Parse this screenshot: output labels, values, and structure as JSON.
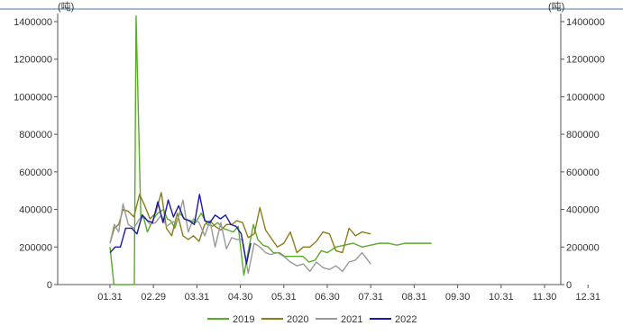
{
  "chart_data": {
    "type": "line",
    "unit_left": "(吨)",
    "unit_right": "(吨)",
    "ylim": [
      0,
      1400000
    ],
    "y_ticks": [
      0,
      200000,
      400000,
      600000,
      800000,
      1000000,
      1200000,
      1400000
    ],
    "y_tick_labels": [
      "0",
      "200000",
      "400000",
      "600000",
      "800000",
      "1000000",
      "1200000",
      "1400000"
    ],
    "x_ticks": [
      "01.31",
      "02.29",
      "03.31",
      "04.30",
      "05.31",
      "06.30",
      "07.31",
      "08.31",
      "09.30",
      "10.31",
      "11.30",
      "12.31"
    ],
    "series": [
      {
        "name": "2019",
        "color": "#5aab2a",
        "x": [
          0.0,
          0.09,
          0.17,
          0.26,
          0.3,
          0.39,
          0.46,
          0.56,
          0.6,
          0.71,
          0.76,
          0.86,
          1.0,
          1.1,
          1.23,
          1.32,
          1.4,
          1.49,
          1.6,
          1.72,
          1.85,
          1.97,
          2.1,
          2.24,
          2.36,
          2.48,
          2.59,
          2.71,
          2.84,
          2.95,
          3.08,
          3.2,
          3.3,
          3.4,
          3.52,
          3.64,
          3.76,
          3.9,
          4.02,
          4.14,
          4.28,
          4.44,
          4.58,
          4.72,
          4.86,
          5.0,
          5.2,
          5.4,
          5.6,
          5.8,
          6.0,
          6.2,
          6.4,
          6.6,
          6.8,
          7.0,
          7.18,
          7.4
        ],
        "values": [
          200000,
          0,
          0,
          0,
          0,
          0,
          0,
          0,
          1430000,
          350000,
          370000,
          280000,
          350000,
          380000,
          400000,
          350000,
          340000,
          300000,
          380000,
          350000,
          340000,
          330000,
          380000,
          320000,
          310000,
          330000,
          300000,
          290000,
          280000,
          310000,
          50000,
          200000,
          320000,
          240000,
          210000,
          200000,
          170000,
          170000,
          150000,
          150000,
          150000,
          150000,
          120000,
          130000,
          180000,
          170000,
          200000,
          210000,
          220000,
          200000,
          210000,
          220000,
          220000,
          210000,
          220000,
          220000,
          220000,
          220000
        ]
      },
      {
        "name": "2020",
        "color": "#8b7d1c",
        "x": [
          0.0,
          0.1,
          0.2,
          0.3,
          0.42,
          0.55,
          0.68,
          0.8,
          0.92,
          1.05,
          1.18,
          1.3,
          1.42,
          1.55,
          1.68,
          1.8,
          1.92,
          2.05,
          2.18,
          2.3,
          2.42,
          2.55,
          2.68,
          2.8,
          2.92,
          3.05,
          3.18,
          3.32,
          3.45,
          3.58,
          3.7,
          3.85,
          4.0,
          4.15,
          4.3,
          4.45,
          4.6,
          4.75,
          4.9,
          5.05,
          5.2,
          5.35,
          5.5,
          5.65,
          5.8,
          6.0
        ],
        "values": [
          220000,
          300000,
          320000,
          400000,
          390000,
          360000,
          480000,
          420000,
          350000,
          380000,
          490000,
          300000,
          260000,
          380000,
          260000,
          240000,
          260000,
          230000,
          320000,
          340000,
          310000,
          290000,
          320000,
          320000,
          340000,
          330000,
          250000,
          270000,
          410000,
          290000,
          250000,
          200000,
          220000,
          280000,
          170000,
          200000,
          200000,
          230000,
          280000,
          270000,
          180000,
          170000,
          300000,
          260000,
          280000,
          270000
        ]
      },
      {
        "name": "2021",
        "color": "#999999",
        "x": [
          0.0,
          0.1,
          0.2,
          0.3,
          0.42,
          0.55,
          0.68,
          0.8,
          0.92,
          1.05,
          1.18,
          1.3,
          1.42,
          1.55,
          1.68,
          1.8,
          1.92,
          2.05,
          2.18,
          2.3,
          2.42,
          2.55,
          2.68,
          2.8,
          2.92,
          3.05,
          3.18,
          3.32,
          3.45,
          3.58,
          3.7,
          3.85,
          4.0,
          4.15,
          4.3,
          4.45,
          4.6,
          4.75,
          4.9,
          5.05,
          5.2,
          5.35,
          5.5,
          5.65,
          5.8,
          6.0
        ],
        "values": [
          220000,
          320000,
          280000,
          430000,
          320000,
          300000,
          350000,
          360000,
          320000,
          330000,
          370000,
          310000,
          330000,
          340000,
          450000,
          280000,
          350000,
          330000,
          260000,
          340000,
          200000,
          330000,
          190000,
          250000,
          240000,
          240000,
          60000,
          220000,
          200000,
          170000,
          160000,
          170000,
          150000,
          120000,
          100000,
          110000,
          70000,
          120000,
          90000,
          80000,
          100000,
          70000,
          120000,
          130000,
          170000,
          110000
        ]
      },
      {
        "name": "2022",
        "color": "#1a1aa6",
        "x": [
          0.0,
          0.12,
          0.24,
          0.36,
          0.5,
          0.62,
          0.74,
          0.86,
          0.98,
          1.1,
          1.22,
          1.34,
          1.46,
          1.58,
          1.7,
          1.82,
          1.94,
          2.06,
          2.18,
          2.3,
          2.42,
          2.54,
          2.66,
          2.78,
          2.9,
          3.02,
          3.14,
          3.24
        ],
        "values": [
          170000,
          200000,
          200000,
          300000,
          300000,
          270000,
          370000,
          340000,
          330000,
          440000,
          330000,
          450000,
          360000,
          420000,
          350000,
          340000,
          320000,
          480000,
          340000,
          330000,
          370000,
          350000,
          370000,
          320000,
          310000,
          270000,
          110000,
          220000
        ]
      }
    ]
  }
}
